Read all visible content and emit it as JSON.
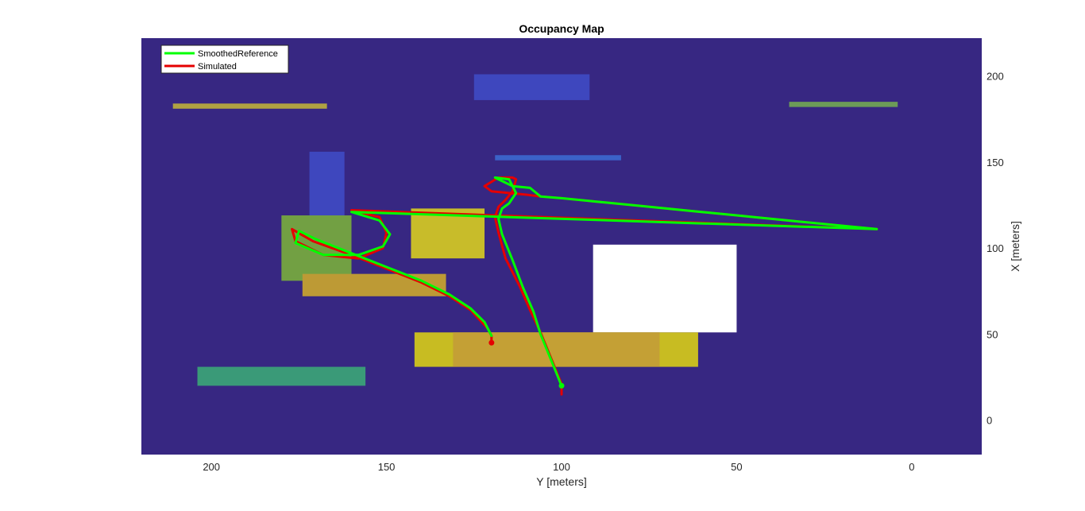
{
  "chart_data": {
    "type": "scatter",
    "title": "Occupancy Map",
    "xlabel": "Y [meters]",
    "ylabel": "X [meters]",
    "xlim": [
      220,
      -20
    ],
    "ylim": [
      -20,
      222
    ],
    "x_direction": "reversed",
    "y_axis_location": "right",
    "xticks": [
      200,
      150,
      100,
      50,
      0
    ],
    "yticks": [
      0,
      50,
      100,
      150,
      200
    ],
    "grid": false,
    "legend": "top-left",
    "background_color": "#372782",
    "obstacles": [
      {
        "name": "",
        "y": [
          125,
          92
        ],
        "x": [
          186,
          201
        ],
        "color": "#3e47be"
      },
      {
        "name": "",
        "y": [
          211,
          167
        ],
        "x": [
          181,
          184
        ],
        "color": "#b0a242"
      },
      {
        "name": "",
        "y": [
          35,
          4
        ],
        "x": [
          182,
          185
        ],
        "color": "#6c9b58"
      },
      {
        "name": "",
        "y": [
          119,
          83
        ],
        "x": [
          151,
          154
        ],
        "color": "#3b62c8"
      },
      {
        "name": "",
        "y": [
          172,
          162
        ],
        "x": [
          118,
          156
        ],
        "color": "#3e47be"
      },
      {
        "name": "",
        "y": [
          180,
          160
        ],
        "x": [
          81,
          119
        ],
        "color": "#72a043"
      },
      {
        "name": "",
        "y": [
          143,
          122
        ],
        "x": [
          94,
          123
        ],
        "color": "#c8bc2a"
      },
      {
        "name": "",
        "y": [
          174,
          133
        ],
        "x": [
          72,
          85
        ],
        "color": "#bd9a35"
      },
      {
        "name": "",
        "y": [
          91,
          50
        ],
        "x": [
          51,
          102
        ],
        "color": "#ffffff"
      },
      {
        "name": "",
        "y": [
          142,
          61
        ],
        "x": [
          31,
          51
        ],
        "color": "#c8bc22"
      },
      {
        "name": "",
        "y": [
          131,
          72
        ],
        "x": [
          31,
          51
        ],
        "color": "#c4a035"
      },
      {
        "name": "",
        "y": [
          204,
          156
        ],
        "x": [
          20,
          31
        ],
        "color": "#3a9a78"
      }
    ],
    "series": [
      {
        "name": "SmoothedReference",
        "color": "#00ff00",
        "y": [
          100,
          102,
          106,
          108,
          111,
          114,
          117,
          118,
          117,
          115,
          113,
          115,
          119,
          118,
          114,
          109,
          106,
          100,
          90,
          80,
          70,
          60,
          50,
          40,
          30,
          20,
          10,
          160,
          152,
          149,
          151,
          158,
          168,
          176,
          175,
          170,
          160,
          150,
          140,
          132,
          126,
          122,
          120
        ],
        "x": [
          20,
          30,
          50,
          63,
          77,
          93,
          108,
          117,
          123,
          126,
          132,
          140,
          141,
          140,
          136,
          135,
          130,
          129,
          127,
          125,
          123,
          121,
          119,
          117,
          115,
          113,
          111,
          121,
          116,
          108,
          101,
          96,
          96,
          103,
          110,
          105,
          97,
          89,
          81,
          73,
          65,
          57,
          49
        ],
        "end_marker": {
          "y": 100,
          "x": 20
        }
      },
      {
        "name": "Simulated",
        "color": "#e50000",
        "y": [
          100,
          100,
          102,
          106,
          109,
          112,
          116,
          118,
          119,
          118,
          116,
          114,
          113,
          114,
          118,
          122,
          120,
          115,
          110,
          106,
          100,
          90,
          80,
          70,
          60,
          50,
          40,
          30,
          20,
          10,
          160,
          152,
          150,
          151,
          158,
          168,
          176,
          177,
          171,
          160,
          150,
          140,
          132,
          126,
          121,
          120,
          120
        ],
        "x": [
          15,
          21,
          31,
          51,
          64,
          78,
          94,
          109,
          118,
          124,
          128,
          133,
          140,
          141,
          141,
          136,
          133,
          132,
          131,
          130,
          129,
          127,
          125,
          123,
          121,
          119,
          117,
          115,
          113,
          111,
          122,
          118,
          109,
          100,
          94,
          96,
          104,
          111,
          104,
          96,
          88,
          80,
          72,
          64,
          53,
          49,
          45
        ],
        "end_marker": {
          "y": 120,
          "x": 45
        }
      }
    ]
  }
}
